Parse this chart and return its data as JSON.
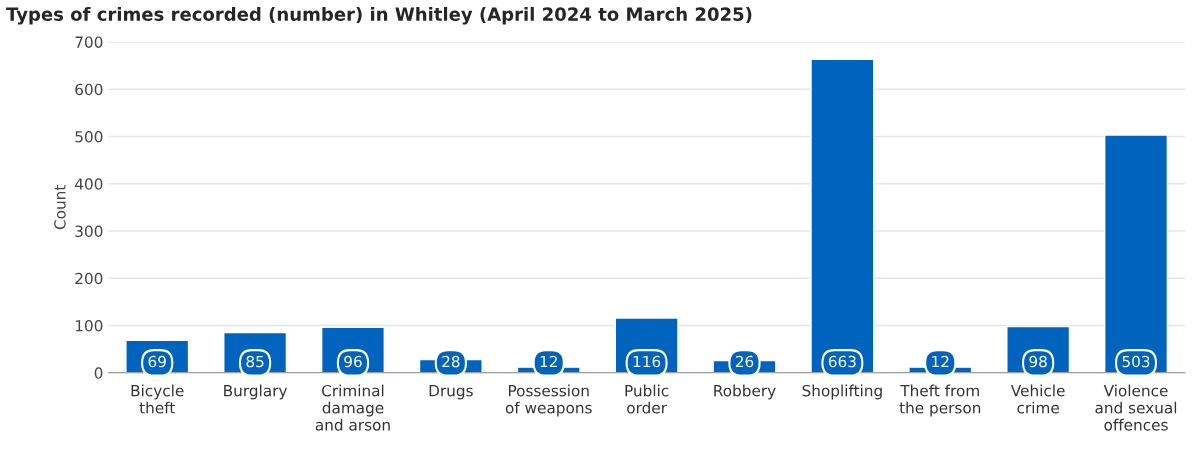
{
  "chart_data": {
    "type": "bar",
    "title": "Types of crimes recorded (number) in Whitley (April 2024 to March 2025)",
    "ylabel": "Count",
    "categories": [
      "Bicycle\ntheft",
      "Burglary",
      "Criminal\ndamage\nand arson",
      "Drugs",
      "Possession\nof weapons",
      "Public\norder",
      "Robbery",
      "Shoplifting",
      "Theft from\nthe person",
      "Vehicle\ncrime",
      "Violence\nand sexual\noffences"
    ],
    "values": [
      69,
      85,
      96,
      28,
      12,
      116,
      26,
      663,
      12,
      98,
      503
    ],
    "color": "#0063be",
    "ylim": [
      0,
      700
    ],
    "yticks": [
      0,
      100,
      200,
      300,
      400,
      500,
      600,
      700
    ],
    "grid": "y",
    "data_labels": true
  }
}
